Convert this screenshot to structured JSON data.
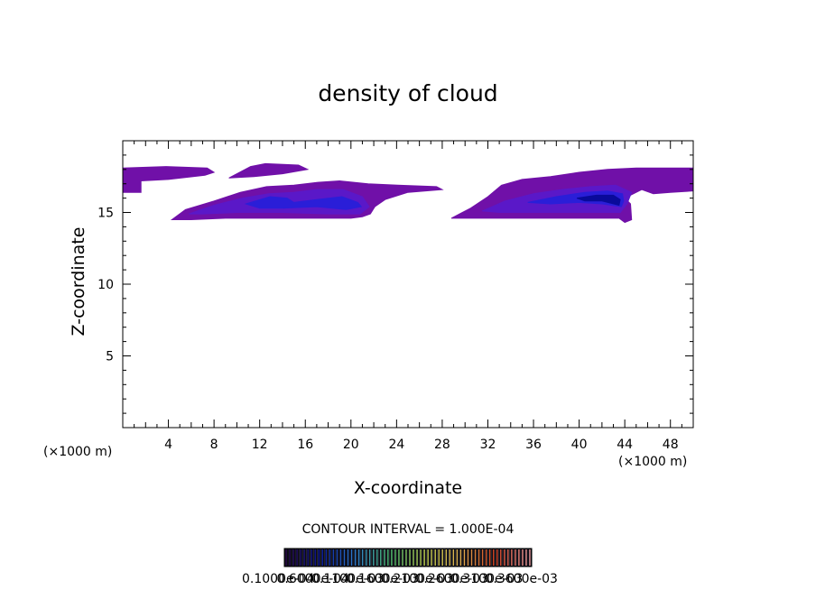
{
  "chart_data": {
    "type": "heatmap",
    "title": "density of cloud",
    "xlabel": "X-coordinate",
    "ylabel": "Z-coordinate",
    "x_unit": "(×1000 m)",
    "y_unit": "(×1000 m)",
    "xlim": [
      0,
      50
    ],
    "ylim": [
      0,
      20
    ],
    "x_ticks": [
      4,
      8,
      12,
      16,
      20,
      24,
      28,
      32,
      36,
      40,
      44,
      48
    ],
    "y_ticks": [
      5,
      10,
      15
    ],
    "contour_interval": "CONTOUR INTERVAL = 1.000E-04",
    "colorbar": {
      "labels": [
        "0.1000e-04",
        "0.6000e-04",
        "0.1100e-03",
        "0.1600e-03",
        "0.2100e-03",
        "0.2600e-03",
        "0.3100e-03",
        "0.3600e-03"
      ],
      "colors": [
        "#2a0a4a",
        "#0a1a9a",
        "#2f7fcf",
        "#4fbf6f",
        "#bfcf4f",
        "#e0b050",
        "#d04020",
        "#f0a0a0"
      ]
    },
    "regions": [
      {
        "name": "left-high",
        "level": 1,
        "color": "#7010a8",
        "poly": [
          [
            0,
            18.1
          ],
          [
            3.8,
            18.2
          ],
          [
            7.4,
            18.1
          ],
          [
            8.0,
            17.8
          ],
          [
            7.2,
            17.6
          ],
          [
            4.0,
            17.3
          ],
          [
            1.6,
            17.2
          ],
          [
            1.6,
            16.4
          ],
          [
            0,
            16.4
          ]
        ]
      },
      {
        "name": "left-upper-blob",
        "level": 1,
        "color": "#7010a8",
        "poly": [
          [
            9.3,
            17.4
          ],
          [
            11.2,
            18.2
          ],
          [
            12.5,
            18.4
          ],
          [
            15.4,
            18.3
          ],
          [
            16.2,
            18.0
          ],
          [
            14.0,
            17.7
          ],
          [
            11.5,
            17.5
          ]
        ]
      },
      {
        "name": "left-main",
        "level": 1,
        "color": "#7010a8",
        "poly": [
          [
            4.3,
            14.5
          ],
          [
            5.5,
            15.2
          ],
          [
            8.0,
            15.8
          ],
          [
            10.3,
            16.4
          ],
          [
            12.6,
            16.8
          ],
          [
            15.0,
            16.9
          ],
          [
            17.1,
            17.1
          ],
          [
            19.0,
            17.2
          ],
          [
            21.5,
            17.0
          ],
          [
            24.1,
            16.9
          ],
          [
            27.5,
            16.8
          ],
          [
            28.0,
            16.6
          ],
          [
            25.0,
            16.4
          ],
          [
            23.0,
            15.9
          ],
          [
            22.1,
            15.4
          ],
          [
            21.7,
            14.9
          ],
          [
            21.0,
            14.7
          ],
          [
            20.0,
            14.6
          ],
          [
            17.0,
            14.6
          ],
          [
            13.0,
            14.6
          ],
          [
            9.0,
            14.6
          ],
          [
            6.0,
            14.5
          ]
        ]
      },
      {
        "name": "left-mid",
        "level": 2,
        "color": "#5a18c8",
        "poly": [
          [
            5.8,
            14.9
          ],
          [
            8.0,
            15.5
          ],
          [
            10.5,
            16.0
          ],
          [
            12.8,
            16.3
          ],
          [
            15.0,
            16.4
          ],
          [
            17.0,
            16.6
          ],
          [
            19.3,
            16.6
          ],
          [
            21.0,
            16.1
          ],
          [
            21.6,
            15.4
          ],
          [
            20.8,
            14.9
          ],
          [
            18.0,
            14.9
          ],
          [
            14.0,
            15.0
          ],
          [
            10.0,
            15.0
          ],
          [
            7.0,
            14.9
          ]
        ]
      },
      {
        "name": "left-core",
        "level": 3,
        "color": "#2a1ed8",
        "poly": [
          [
            10.8,
            15.6
          ],
          [
            12.9,
            16.1
          ],
          [
            14.4,
            16.0
          ],
          [
            15.0,
            15.7
          ],
          [
            17.0,
            15.9
          ],
          [
            19.2,
            16.1
          ],
          [
            20.6,
            15.7
          ],
          [
            20.9,
            15.4
          ],
          [
            19.6,
            15.2
          ],
          [
            17.0,
            15.4
          ],
          [
            14.0,
            15.3
          ],
          [
            12.0,
            15.3
          ]
        ]
      },
      {
        "name": "right-main",
        "level": 1,
        "color": "#7010a8",
        "poly": [
          [
            28.8,
            14.6
          ],
          [
            30.5,
            15.3
          ],
          [
            32.0,
            16.1
          ],
          [
            33.2,
            16.9
          ],
          [
            35.0,
            17.3
          ],
          [
            37.5,
            17.5
          ],
          [
            40.0,
            17.8
          ],
          [
            42.5,
            18.0
          ],
          [
            45.0,
            18.1
          ],
          [
            47.5,
            18.1
          ],
          [
            50,
            18.1
          ],
          [
            50,
            16.5
          ],
          [
            48.0,
            16.4
          ],
          [
            46.5,
            16.3
          ],
          [
            45.5,
            16.6
          ],
          [
            44.0,
            16.0
          ],
          [
            44.5,
            15.6
          ],
          [
            44.6,
            14.5
          ],
          [
            44.0,
            14.3
          ],
          [
            43.5,
            14.6
          ],
          [
            40.0,
            14.6
          ],
          [
            36.0,
            14.6
          ],
          [
            33.0,
            14.6
          ],
          [
            30.0,
            14.6
          ]
        ]
      },
      {
        "name": "right-mid",
        "level": 2,
        "color": "#5a18c8",
        "poly": [
          [
            31.5,
            15.1
          ],
          [
            33.5,
            15.8
          ],
          [
            36.0,
            16.3
          ],
          [
            38.5,
            16.6
          ],
          [
            41.0,
            16.8
          ],
          [
            43.2,
            16.9
          ],
          [
            44.6,
            16.4
          ],
          [
            44.2,
            15.6
          ],
          [
            43.6,
            15.0
          ],
          [
            40.0,
            15.0
          ],
          [
            36.0,
            15.0
          ],
          [
            33.0,
            15.0
          ]
        ]
      },
      {
        "name": "right-core",
        "level": 3,
        "color": "#2a1ed8",
        "poly": [
          [
            35.5,
            15.7
          ],
          [
            38.0,
            16.1
          ],
          [
            40.5,
            16.4
          ],
          [
            42.5,
            16.5
          ],
          [
            43.8,
            16.3
          ],
          [
            43.9,
            15.8
          ],
          [
            43.7,
            15.4
          ],
          [
            42.0,
            15.6
          ],
          [
            40.0,
            15.7
          ],
          [
            37.5,
            15.6
          ]
        ]
      },
      {
        "name": "right-core-dark",
        "level": 4,
        "color": "#0a0a9a",
        "poly": [
          [
            39.8,
            16.0
          ],
          [
            41.5,
            16.2
          ],
          [
            43.0,
            16.2
          ],
          [
            43.6,
            15.9
          ],
          [
            43.5,
            15.5
          ],
          [
            42.0,
            15.8
          ],
          [
            40.5,
            15.8
          ]
        ]
      }
    ]
  }
}
